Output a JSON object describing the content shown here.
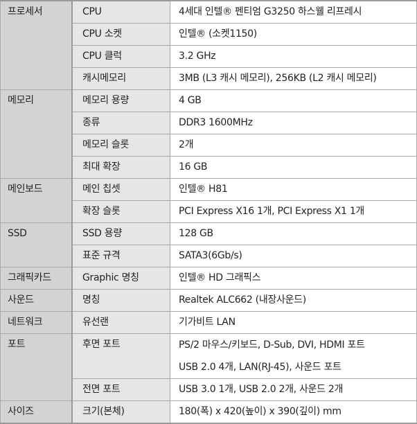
{
  "rows": [
    {
      "category": "프로세서",
      "item": "CPU",
      "value": "4세대 인텔® 펜티엄 G3250 하스웰 리프레시"
    },
    {
      "item": "CPU 소켓",
      "value": "인텔® (소켓1150)"
    },
    {
      "item": "CPU 클럭",
      "value": "3.2 GHz"
    },
    {
      "item": "캐시메모리",
      "value": "3MB (L3 캐시 메모리), 256KB (L2 캐시 메모리)"
    },
    {
      "category": "메모리",
      "item": "메모리 용량",
      "value": "4 GB"
    },
    {
      "item": "종류",
      "value": "DDR3 1600MHz"
    },
    {
      "item": "메모리 슬롯",
      "value": "2개"
    },
    {
      "item": "최대 확장",
      "value": "16 GB"
    },
    {
      "category": "메인보드",
      "item": "메인 칩셋",
      "value": "인텔® H81"
    },
    {
      "item": "확장 슬롯",
      "value": "PCI Express X16  1개, PCI Express X1  1개"
    },
    {
      "category": "SSD",
      "item": "SSD 용량",
      "value": "128 GB"
    },
    {
      "item": "표준 규격",
      "value": "SATA3(6Gb/s)"
    },
    {
      "category": "그래픽카드",
      "item": "Graphic 명칭",
      "value": "인텔® HD 그래픽스"
    },
    {
      "category": "사운드",
      "item": "명칭",
      "value": "Realtek ALC662 (내장사운드)"
    },
    {
      "category": "네트워크",
      "item": "유선랜",
      "value": "기가비트 LAN"
    },
    {
      "category": "포트",
      "item": "후면 포트",
      "value": "PS/2 마우스/키보드, D-Sub, DVI, HDMI 포트",
      "value2": "USB 2.0 4개, LAN(RJ-45),  사운드 포트"
    },
    {
      "item": "전면 포트",
      "value": "USB 3.0 1개, USB 2.0 2개, 사운드 2개"
    },
    {
      "category": "사이즈",
      "item": "크기(본체)",
      "value": "180(폭) x 420(높이) x 390(깊이) mm"
    }
  ]
}
